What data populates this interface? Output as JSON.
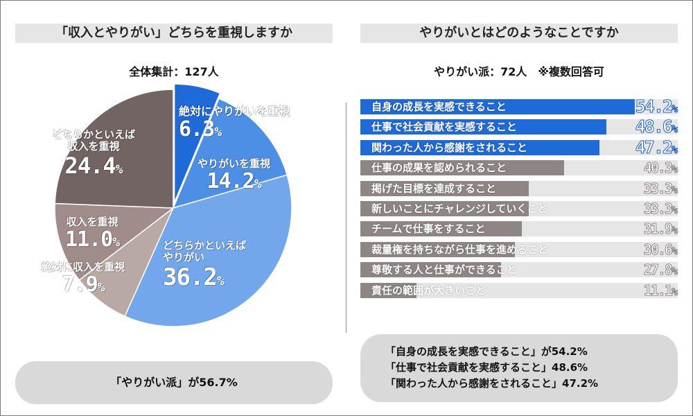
{
  "colors": {
    "blue_dark": "#1f6ad9",
    "blue_mid": "#4e8fe6",
    "blue_light": "#72a7ec",
    "beige_gray": "#b9a9a5",
    "rose_gray": "#a08d8b",
    "brown_gray": "#716462",
    "bar_rest": "#8e8585",
    "panel_gray": "#e6e6e6"
  },
  "left": {
    "title": "「収入とやりがい」どちらを重視しますか",
    "subtitle": "全体集計：127人",
    "summary": "「やりがい派」が56.7%"
  },
  "right": {
    "title": "やりがいとはどのようなことですか",
    "subtitle": "やりがい派：72人　※複数回答可",
    "summary": [
      "「自身の成長を実感できること」が54.2%",
      "「仕事で社会貢献を実感すること」48.6%",
      "「関わった人から感謝をされること」47.2%"
    ]
  },
  "chart_data": [
    {
      "type": "pie",
      "title": "「収入とやりがい」どちらを重視しますか",
      "subtitle": "全体集計：127人",
      "slices": [
        {
          "label": "絶対にやりがいを重視",
          "value": 6.3,
          "display": "6.3",
          "color": "#1f6ad9"
        },
        {
          "label": "やりがいを重視",
          "value": 14.2,
          "display": "14.2",
          "color": "#4e8fe6"
        },
        {
          "label": "どちらかといえばやりがい",
          "label_lines": [
            "どちらかといえば",
            "やりがい"
          ],
          "value": 36.2,
          "display": "36.2",
          "color": "#72a7ec"
        },
        {
          "label": "絶対に収入を重視",
          "value": 7.9,
          "display": "7.9",
          "color": "#b9a9a5"
        },
        {
          "label": "収入を重視",
          "value": 11.0,
          "display": "11.0",
          "color": "#a08d8b"
        },
        {
          "label": "どちらかといえば収入を重視",
          "label_lines": [
            "どちらかといえば",
            "収入を重視"
          ],
          "value": 24.4,
          "display": "24.4",
          "color": "#716462"
        }
      ],
      "unit": "%"
    },
    {
      "type": "bar",
      "orientation": "horizontal",
      "title": "やりがいとはどのようなことですか",
      "subtitle": "やりがい派：72人　※複数回答可",
      "unit": "%",
      "xlim": [
        0,
        100
      ],
      "categories": [
        "自身の成長を実感できること",
        "仕事で社会貢献を実感すること",
        "関わった人から感謝をされること",
        "仕事の成果を認められること",
        "掲げた目標を達成すること",
        "新しいことにチャレンジしていくこと",
        "チームで仕事をすること",
        "裁量権を持ちながら仕事を進めること",
        "尊敬する人と仕事ができること",
        "責任の範囲が大きいこと"
      ],
      "values": [
        54.2,
        48.6,
        47.2,
        40.3,
        33.3,
        33.3,
        31.9,
        30.6,
        27.8,
        11.1
      ],
      "display": [
        "54.2",
        "48.6",
        "47.2",
        "40.3",
        "33.3",
        "33.3",
        "31.9",
        "30.6",
        "27.8",
        "11.1"
      ],
      "highlight_top": 3
    }
  ]
}
